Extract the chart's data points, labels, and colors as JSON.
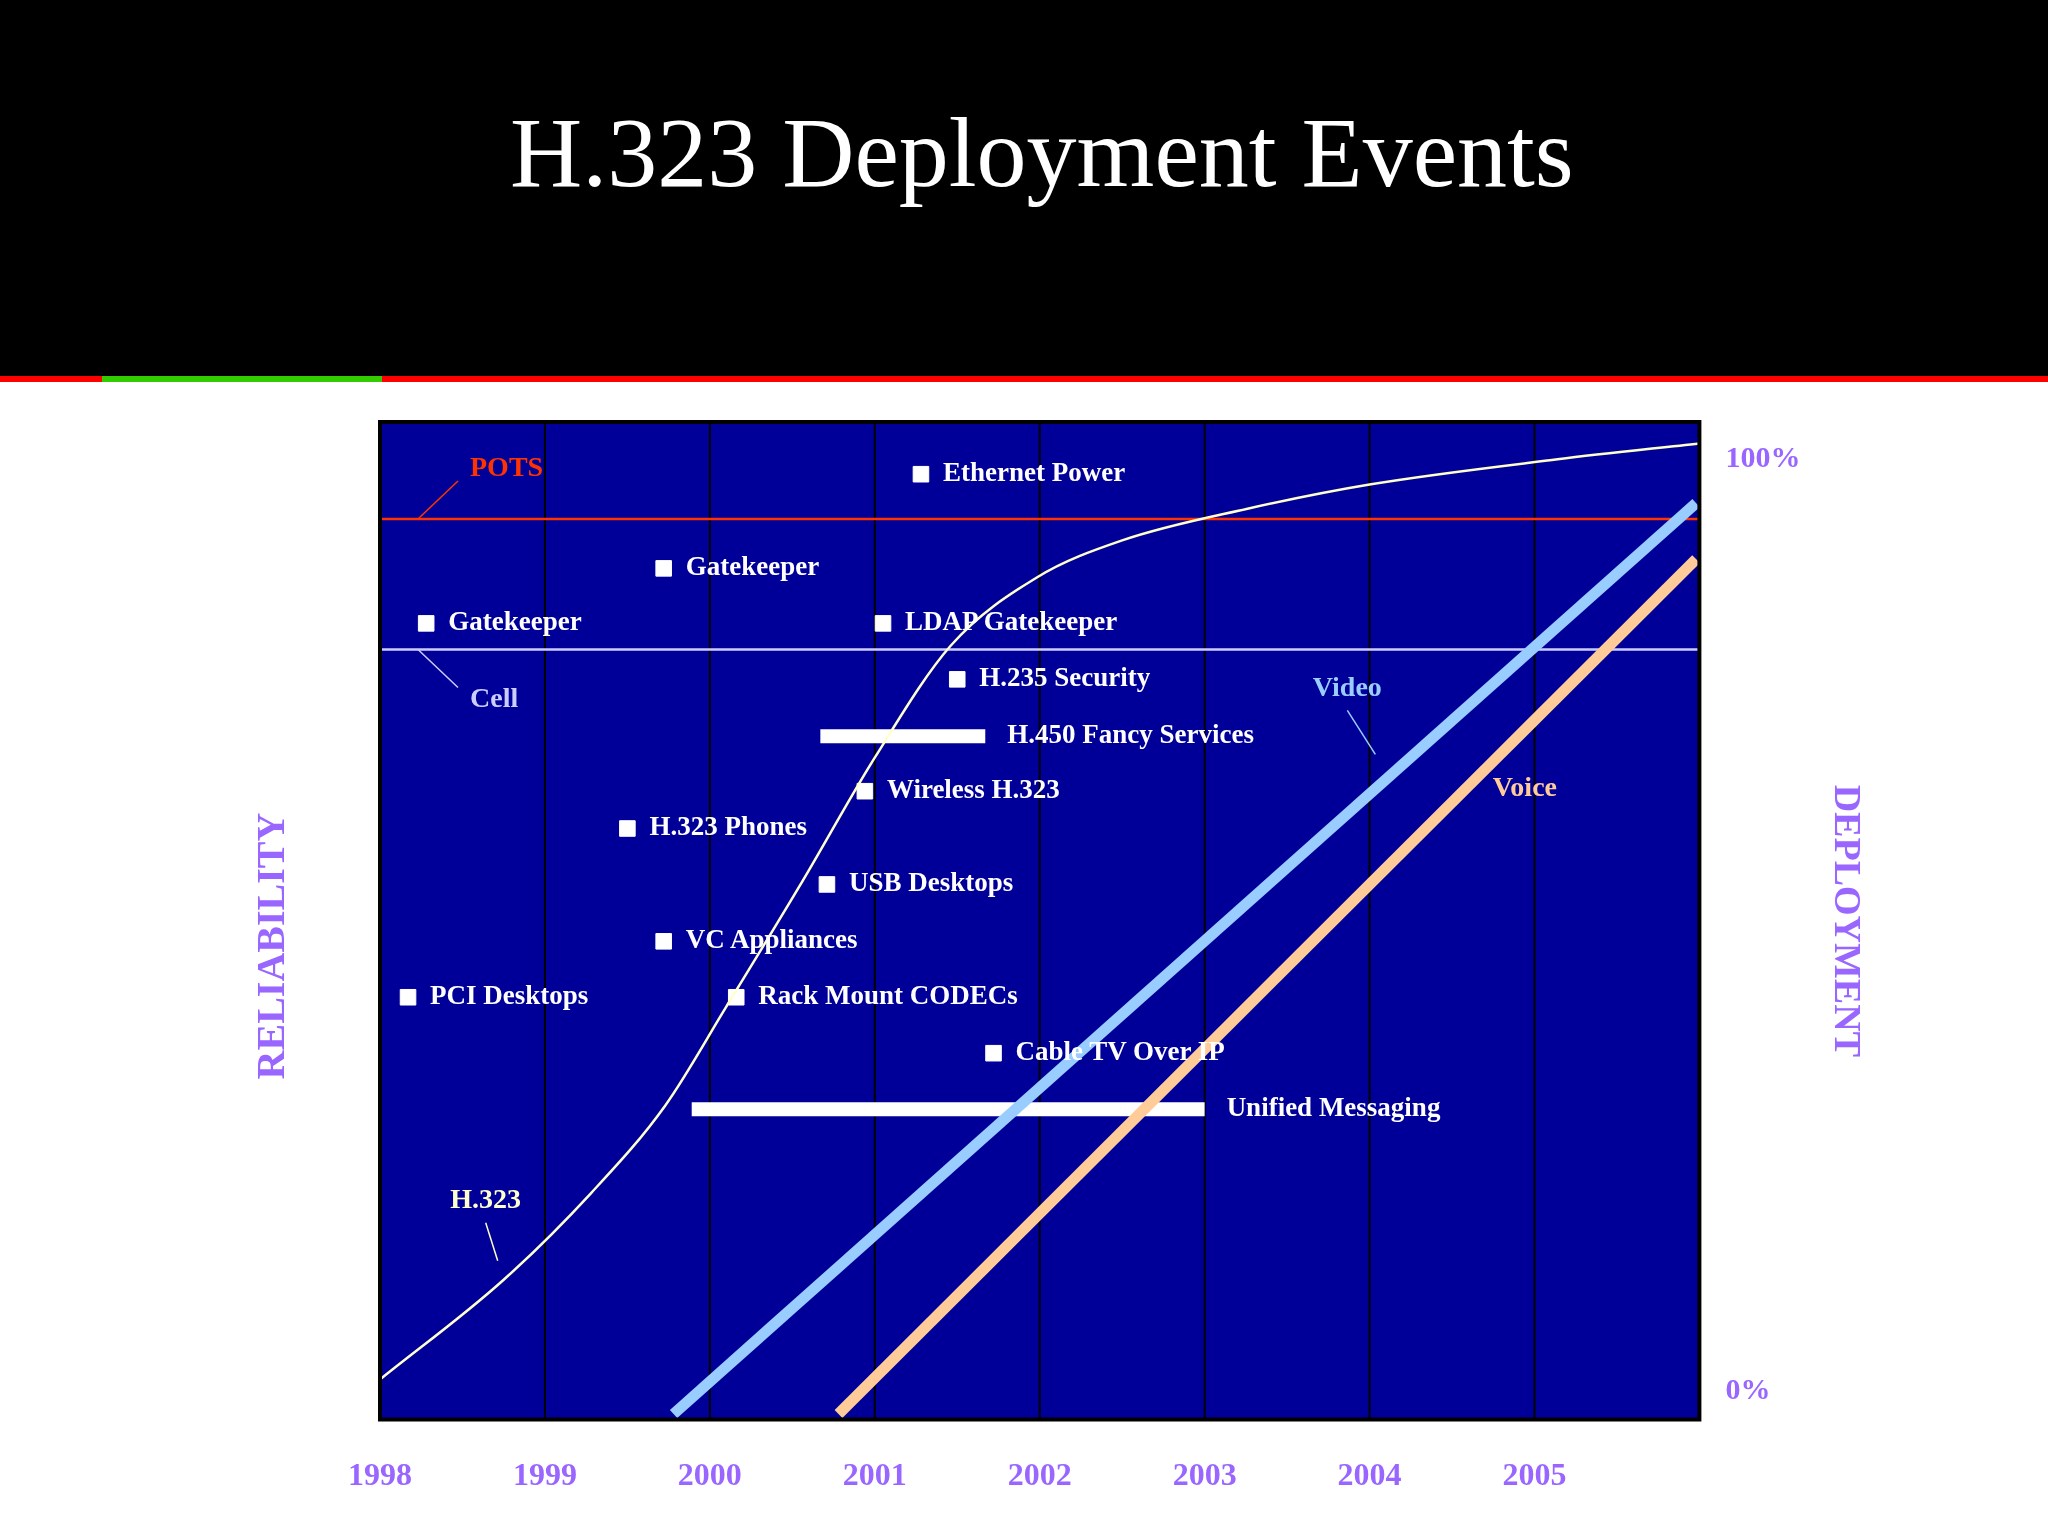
{
  "chart_data": {
    "type": "line",
    "title": "H.323 Deployment Events",
    "ylabel": "DEPLOYMENT",
    "xlim": [
      1998,
      2006
    ],
    "xticks": [
      1998,
      1999,
      2000,
      2001,
      2002,
      2003,
      2004,
      2005
    ],
    "ylim": [
      -3,
      104
    ],
    "yticks": [
      {
        "value": 0,
        "label": "0%"
      },
      {
        "value": 100,
        "label": "100%"
      }
    ],
    "grid": "x",
    "legend": false,
    "ref_lines": [
      {
        "axis": "y",
        "value": 93.6,
        "label": "POTS",
        "color": "#ff3300"
      },
      {
        "axis": "y",
        "value": 79.6,
        "label": "Cell",
        "color": "#ccccff"
      }
    ],
    "series": [
      {
        "name": "H.323",
        "color": "#ffffcc",
        "x": [
          1998,
          1998.75,
          1999.28,
          1999.73,
          2000.1,
          2000.56,
          2001.0,
          2001.46,
          2001.98,
          2002.5,
          2003.26,
          2004.0,
          2005.14,
          2006
        ],
        "values": [
          1.3,
          12,
          21.3,
          30.7,
          41.3,
          54.7,
          68,
          80,
          87.3,
          91.3,
          94.7,
          97.3,
          100,
          101.7
        ]
      },
      {
        "name": "Video",
        "color": "#99ccff",
        "x": [
          1999.78,
          2005.98
        ],
        "values": [
          -2.4,
          95.3
        ]
      },
      {
        "name": "Voice",
        "color": "#ffcc99",
        "x": [
          2000.78,
          2005.98
        ],
        "values": [
          -2.4,
          89.3
        ]
      },
      {
        "color": "#ffffff",
        "x": [
          2000.67,
          2001.67
        ],
        "values": [
          70.3,
          70.3
        ]
      },
      {
        "color": "#ffffff",
        "x": [
          1999.89,
          2003.0
        ],
        "values": [
          30.3,
          30.3
        ]
      },
      {
        "type": "scatter",
        "marker": "square",
        "color": "#ffffff",
        "x": [
          2001.28,
          1999.72,
          1998.28,
          2001.05,
          2001.5,
          2000.94,
          1999.5,
          2000.71,
          1999.72,
          1998.17,
          2000.16,
          2001.72
        ],
        "values": [
          98.4,
          88.3,
          82.4,
          82.4,
          76.4,
          64.4,
          60.4,
          54.4,
          48.3,
          42.3,
          42.3,
          36.3
        ]
      }
    ],
    "annotations": [
      "RELIABILITY",
      {
        "text": "Ethernet Power",
        "x": 2001.28,
        "y": 98.4
      },
      {
        "text": "Gatekeeper",
        "x": 1999.72,
        "y": 88.3
      },
      {
        "text": "Gatekeeper",
        "x": 1998.28,
        "y": 82.4
      },
      {
        "text": "LDAP Gatekeeper",
        "x": 2001.05,
        "y": 82.4
      },
      {
        "text": "H.235 Security",
        "x": 2001.5,
        "y": 76.4
      },
      {
        "text": "H.450 Fancy Services",
        "x": 2001.67,
        "y": 70.3
      },
      {
        "text": "Wireless H.323",
        "x": 2000.94,
        "y": 64.4
      },
      {
        "text": "H.323 Phones",
        "x": 1999.5,
        "y": 60.4
      },
      {
        "text": "USB Desktops",
        "x": 2000.71,
        "y": 54.4
      },
      {
        "text": "VC Appliances",
        "x": 1999.72,
        "y": 48.3
      },
      {
        "text": "PCI Desktops",
        "x": 1998.17,
        "y": 42.3
      },
      {
        "text": "Rack Mount CODECs",
        "x": 2000.16,
        "y": 42.3
      },
      {
        "text": "Cable TV Over IP",
        "x": 2001.72,
        "y": 36.3
      },
      {
        "text": "Unified Messaging",
        "x": 2003.0,
        "y": 30.3
      }
    ]
  }
}
